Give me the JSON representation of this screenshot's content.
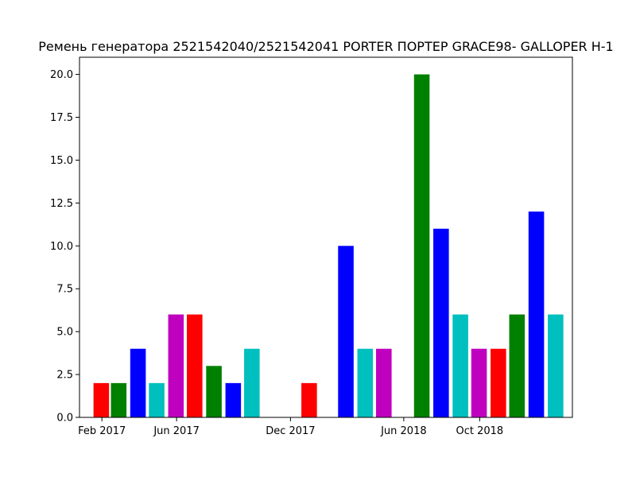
{
  "chart_data": {
    "type": "bar",
    "title": "Ремень генератора 2521542040/2521542041 PORTER ПОРТЕР GRACE98- GALLOPER H-1",
    "xlabel": "",
    "ylabel": "",
    "x_axis_kind": "date",
    "x_ticks": [
      {
        "label": "Feb 2017",
        "date": "2017-02-01"
      },
      {
        "label": "Jun 2017",
        "date": "2017-06-01"
      },
      {
        "label": "Dec 2017",
        "date": "2017-12-01"
      },
      {
        "label": "Jun 2018",
        "date": "2018-06-01"
      },
      {
        "label": "Oct 2018",
        "date": "2018-10-01"
      }
    ],
    "y_ticks": [
      "0.0",
      "2.5",
      "5.0",
      "7.5",
      "10.0",
      "12.5",
      "15.0",
      "17.5",
      "20.0"
    ],
    "xlim": [
      "2016-12-27",
      "2019-02-27"
    ],
    "ylim": [
      0,
      21
    ],
    "grid": false,
    "bars": [
      {
        "date": "2017-01-31",
        "value": 2,
        "color": "#ff0000"
      },
      {
        "date": "2017-02-28",
        "value": 2,
        "color": "#008000"
      },
      {
        "date": "2017-03-31",
        "value": 4,
        "color": "#0000ff"
      },
      {
        "date": "2017-04-30",
        "value": 2,
        "color": "#00bfbf"
      },
      {
        "date": "2017-05-31",
        "value": 6,
        "color": "#bf00bf"
      },
      {
        "date": "2017-06-30",
        "value": 6,
        "color": "#ff0000"
      },
      {
        "date": "2017-07-31",
        "value": 3,
        "color": "#008000"
      },
      {
        "date": "2017-08-31",
        "value": 2,
        "color": "#0000ff"
      },
      {
        "date": "2017-09-30",
        "value": 4,
        "color": "#00bfbf"
      },
      {
        "date": "2017-12-31",
        "value": 2,
        "color": "#ff0000"
      },
      {
        "date": "2018-02-28",
        "value": 10,
        "color": "#0000ff"
      },
      {
        "date": "2018-03-31",
        "value": 4,
        "color": "#00bfbf"
      },
      {
        "date": "2018-04-30",
        "value": 4,
        "color": "#bf00bf"
      },
      {
        "date": "2018-06-30",
        "value": 20,
        "color": "#008000"
      },
      {
        "date": "2018-07-31",
        "value": 11,
        "color": "#0000ff"
      },
      {
        "date": "2018-08-31",
        "value": 6,
        "color": "#00bfbf"
      },
      {
        "date": "2018-09-30",
        "value": 4,
        "color": "#bf00bf"
      },
      {
        "date": "2018-10-31",
        "value": 4,
        "color": "#ff0000"
      },
      {
        "date": "2018-11-30",
        "value": 6,
        "color": "#008000"
      },
      {
        "date": "2018-12-31",
        "value": 12,
        "color": "#0000ff"
      },
      {
        "date": "2019-01-31",
        "value": 6,
        "color": "#00bfbf"
      }
    ]
  }
}
